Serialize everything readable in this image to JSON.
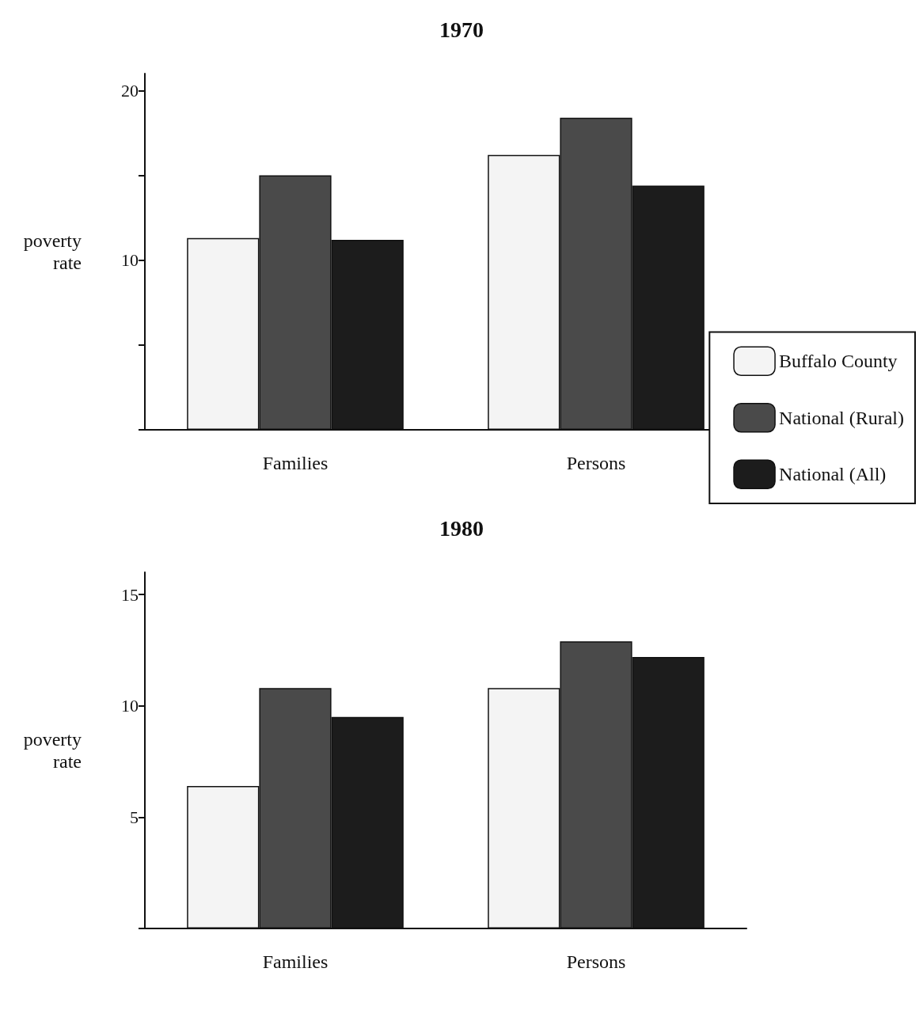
{
  "chart_data": [
    {
      "type": "bar",
      "title": "1970",
      "ylabel": "poverty\nrate",
      "categories": [
        "Families",
        "Persons"
      ],
      "series": [
        {
          "name": "Buffalo County",
          "color": "#f4f4f4",
          "values": [
            11.3,
            16.2
          ]
        },
        {
          "name": "National (Rural)",
          "color": "#4a4a4a",
          "values": [
            15.0,
            18.4
          ]
        },
        {
          "name": "National (All)",
          "color": "#1c1c1c",
          "values": [
            11.2,
            14.4
          ]
        }
      ],
      "ylim": [
        0,
        21
      ],
      "yticks": [
        {
          "value": 0,
          "label": null
        },
        {
          "value": 5,
          "label": null
        },
        10,
        {
          "value": 15,
          "label": null
        },
        20
      ],
      "grid": false,
      "legend": "bottom right"
    },
    {
      "type": "bar",
      "title": "1980",
      "ylabel": "poverty\nrate",
      "categories": [
        "Families",
        "Persons"
      ],
      "series": [
        {
          "color": "#f4f4f4",
          "values": [
            6.4,
            10.8
          ]
        },
        {
          "color": "#4a4a4a",
          "values": [
            10.8,
            12.9
          ]
        },
        {
          "color": "#1c1c1c",
          "values": [
            9.5,
            12.2
          ]
        }
      ],
      "ylim": [
        0,
        16
      ],
      "yticks": [
        {
          "value": 0,
          "label": null
        },
        5,
        10,
        15
      ],
      "grid": false
    }
  ]
}
